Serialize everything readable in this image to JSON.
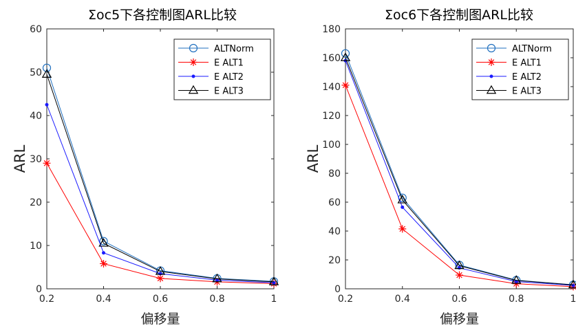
{
  "chart_data": [
    {
      "type": "line",
      "title": "Σoc5下各控制图ARL比较",
      "xlabel": "偏移量",
      "ylabel": "ARL",
      "x": [
        0.2,
        0.4,
        0.6,
        0.8,
        1
      ],
      "xticks": [
        "0.2",
        "0.4",
        "0.6",
        "0.8",
        "1"
      ],
      "xlim": [
        0.2,
        1
      ],
      "ylim": [
        0,
        60
      ],
      "yticks": [
        0,
        10,
        20,
        30,
        40,
        50,
        60
      ],
      "grid": false,
      "legend_position": "top-right",
      "series": [
        {
          "name": "ALTNorm",
          "color": "#1f6fbf",
          "marker": "circle",
          "values": [
            51.0,
            11.0,
            4.2,
            2.4,
            1.7
          ]
        },
        {
          "name": "E ALT1",
          "color": "#ff0000",
          "marker": "asterisk",
          "values": [
            29.0,
            5.8,
            2.4,
            1.6,
            1.2
          ]
        },
        {
          "name": "E ALT2",
          "color": "#1a1aff",
          "marker": "dot",
          "values": [
            42.5,
            8.3,
            3.5,
            2.0,
            1.4
          ]
        },
        {
          "name": "E ALT3",
          "color": "#000000",
          "marker": "triangle",
          "values": [
            49.5,
            10.5,
            4.0,
            2.3,
            1.6
          ]
        }
      ]
    },
    {
      "type": "line",
      "title": "Σoc6下各控制图ARL比较",
      "xlabel": "偏移量",
      "ylabel": "ARL",
      "x": [
        0.2,
        0.4,
        0.6,
        0.8,
        1
      ],
      "xticks": [
        "0.2",
        "0.4",
        "0.6",
        "0.8",
        "1"
      ],
      "xlim": [
        0.2,
        1
      ],
      "ylim": [
        0,
        180
      ],
      "yticks": [
        0,
        20,
        40,
        60,
        80,
        100,
        120,
        140,
        160,
        180
      ],
      "grid": false,
      "legend_position": "top-right",
      "series": [
        {
          "name": "ALTNorm",
          "color": "#1f6fbf",
          "marker": "circle",
          "values": [
            163,
            63,
            16.5,
            6.0,
            2.8
          ]
        },
        {
          "name": "E ALT1",
          "color": "#ff0000",
          "marker": "asterisk",
          "values": [
            141,
            41.5,
            9.5,
            3.5,
            1.5
          ]
        },
        {
          "name": "E ALT2",
          "color": "#1a1aff",
          "marker": "dot",
          "values": [
            158,
            56.5,
            14.5,
            5.0,
            2.3
          ]
        },
        {
          "name": "E ALT3",
          "color": "#000000",
          "marker": "triangle",
          "values": [
            160,
            61.5,
            16.0,
            5.8,
            2.7
          ]
        }
      ]
    }
  ]
}
